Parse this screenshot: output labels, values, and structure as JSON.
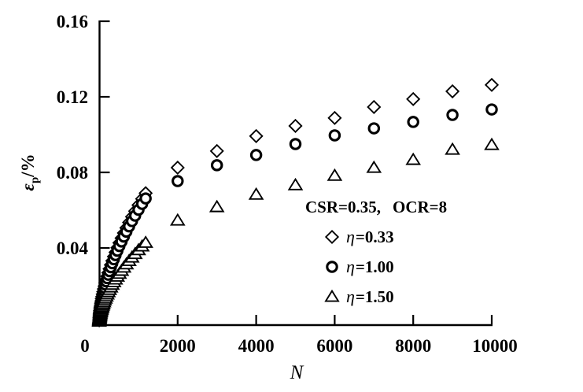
{
  "axes": {
    "y_symbol": "ε",
    "y_sub": "p",
    "y_rest": "/%",
    "x_label": "N"
  },
  "legend": {
    "title_left": "CSR=0.35,",
    "title_right": "OCR=8",
    "items": [
      {
        "symbol": "η",
        "value": "=0.33",
        "marker": "diamond"
      },
      {
        "symbol": "η",
        "value": "=1.00",
        "marker": "circle"
      },
      {
        "symbol": "η",
        "value": "=1.50",
        "marker": "triangle"
      }
    ]
  },
  "chart_data": {
    "type": "scatter",
    "title": "",
    "xlabel": "N",
    "ylabel": "εp/%",
    "xlim": [
      0,
      10000
    ],
    "ylim": [
      0,
      0.16
    ],
    "x_ticks": [
      0,
      2000,
      4000,
      6000,
      8000,
      10000
    ],
    "x_tick_labels": [
      "0",
      "2000",
      "4000",
      "6000",
      "8000",
      "10000"
    ],
    "y_ticks": [
      0.04,
      0.08,
      0.12,
      0.16
    ],
    "y_tick_labels": [
      "0.04",
      "0.08",
      "0.12",
      "0.16"
    ],
    "grid": false,
    "legend_position": "inside-right-middle",
    "annotation": "CSR=0.35, OCR=8",
    "series": [
      {
        "name": "η=0.33",
        "marker": "diamond",
        "points": [
          [
            2,
            0.0017
          ],
          [
            4,
            0.0025
          ],
          [
            6,
            0.0032
          ],
          [
            8,
            0.0038
          ],
          [
            11,
            0.0046
          ],
          [
            14,
            0.0053
          ],
          [
            18,
            0.0061
          ],
          [
            22,
            0.0068
          ],
          [
            27,
            0.0077
          ],
          [
            33,
            0.0087
          ],
          [
            40,
            0.0097
          ],
          [
            48,
            0.0108
          ],
          [
            57,
            0.0119
          ],
          [
            67,
            0.0131
          ],
          [
            78,
            0.0142
          ],
          [
            90,
            0.0155
          ],
          [
            104,
            0.0168
          ],
          [
            120,
            0.0183
          ],
          [
            138,
            0.0198
          ],
          [
            158,
            0.0215
          ],
          [
            180,
            0.0232
          ],
          [
            205,
            0.025
          ],
          [
            233,
            0.0269
          ],
          [
            264,
            0.0289
          ],
          [
            298,
            0.031
          ],
          [
            335,
            0.0332
          ],
          [
            375,
            0.0354
          ],
          [
            418,
            0.0377
          ],
          [
            465,
            0.0401
          ],
          [
            516,
            0.0427
          ],
          [
            571,
            0.0452
          ],
          [
            630,
            0.0479
          ],
          [
            694,
            0.0506
          ],
          [
            763,
            0.0535
          ],
          [
            837,
            0.0565
          ],
          [
            917,
            0.0595
          ],
          [
            1003,
            0.0627
          ],
          [
            1095,
            0.066
          ],
          [
            1185,
            0.069
          ],
          [
            2000,
            0.0825
          ],
          [
            3000,
            0.0913
          ],
          [
            4000,
            0.0992
          ],
          [
            5000,
            0.1046
          ],
          [
            6000,
            0.1088
          ],
          [
            7000,
            0.1146
          ],
          [
            8000,
            0.1188
          ],
          [
            9000,
            0.1229
          ],
          [
            10000,
            0.1263
          ]
        ]
      },
      {
        "name": "η=1.00",
        "marker": "circle",
        "points": [
          [
            2,
            0.0016
          ],
          [
            4,
            0.0024
          ],
          [
            6,
            0.0031
          ],
          [
            8,
            0.0037
          ],
          [
            11,
            0.0044
          ],
          [
            14,
            0.0051
          ],
          [
            18,
            0.0059
          ],
          [
            22,
            0.0066
          ],
          [
            27,
            0.0074
          ],
          [
            33,
            0.0083
          ],
          [
            40,
            0.0093
          ],
          [
            48,
            0.0104
          ],
          [
            57,
            0.0114
          ],
          [
            67,
            0.0125
          ],
          [
            78,
            0.0137
          ],
          [
            90,
            0.0149
          ],
          [
            104,
            0.0162
          ],
          [
            120,
            0.0176
          ],
          [
            138,
            0.019
          ],
          [
            158,
            0.0206
          ],
          [
            180,
            0.0223
          ],
          [
            205,
            0.024
          ],
          [
            233,
            0.0258
          ],
          [
            264,
            0.0277
          ],
          [
            298,
            0.0298
          ],
          [
            335,
            0.0319
          ],
          [
            375,
            0.034
          ],
          [
            418,
            0.0362
          ],
          [
            465,
            0.0385
          ],
          [
            516,
            0.041
          ],
          [
            571,
            0.0434
          ],
          [
            630,
            0.046
          ],
          [
            694,
            0.0486
          ],
          [
            763,
            0.0514
          ],
          [
            837,
            0.0542
          ],
          [
            917,
            0.0571
          ],
          [
            1003,
            0.0602
          ],
          [
            1095,
            0.0633
          ],
          [
            1185,
            0.0662
          ],
          [
            2000,
            0.0754
          ],
          [
            3000,
            0.0838
          ],
          [
            4000,
            0.0892
          ],
          [
            5000,
            0.095
          ],
          [
            6000,
            0.0996
          ],
          [
            7000,
            0.1033
          ],
          [
            8000,
            0.1067
          ],
          [
            9000,
            0.1104
          ],
          [
            10000,
            0.1133
          ]
        ]
      },
      {
        "name": "η=1.50",
        "marker": "triangle",
        "points": [
          [
            2,
            0.0011
          ],
          [
            4,
            0.0016
          ],
          [
            6,
            0.002
          ],
          [
            8,
            0.0024
          ],
          [
            11,
            0.0028
          ],
          [
            14,
            0.0033
          ],
          [
            18,
            0.0038
          ],
          [
            22,
            0.0042
          ],
          [
            27,
            0.0048
          ],
          [
            33,
            0.0054
          ],
          [
            40,
            0.006
          ],
          [
            48,
            0.0067
          ],
          [
            57,
            0.0074
          ],
          [
            67,
            0.0081
          ],
          [
            78,
            0.0088
          ],
          [
            90,
            0.0096
          ],
          [
            104,
            0.0104
          ],
          [
            120,
            0.0113
          ],
          [
            138,
            0.0123
          ],
          [
            158,
            0.0133
          ],
          [
            180,
            0.0144
          ],
          [
            205,
            0.0155
          ],
          [
            233,
            0.0167
          ],
          [
            264,
            0.0179
          ],
          [
            298,
            0.0192
          ],
          [
            335,
            0.0206
          ],
          [
            375,
            0.022
          ],
          [
            418,
            0.0234
          ],
          [
            465,
            0.0249
          ],
          [
            516,
            0.0264
          ],
          [
            571,
            0.028
          ],
          [
            630,
            0.0297
          ],
          [
            694,
            0.0314
          ],
          [
            763,
            0.0332
          ],
          [
            837,
            0.035
          ],
          [
            917,
            0.0369
          ],
          [
            1003,
            0.0389
          ],
          [
            1095,
            0.0409
          ],
          [
            1185,
            0.0428
          ],
          [
            2000,
            0.0546
          ],
          [
            3000,
            0.0617
          ],
          [
            4000,
            0.0683
          ],
          [
            5000,
            0.0733
          ],
          [
            6000,
            0.0783
          ],
          [
            7000,
            0.0825
          ],
          [
            8000,
            0.0867
          ],
          [
            9000,
            0.0921
          ],
          [
            10000,
            0.0946
          ]
        ]
      }
    ]
  }
}
